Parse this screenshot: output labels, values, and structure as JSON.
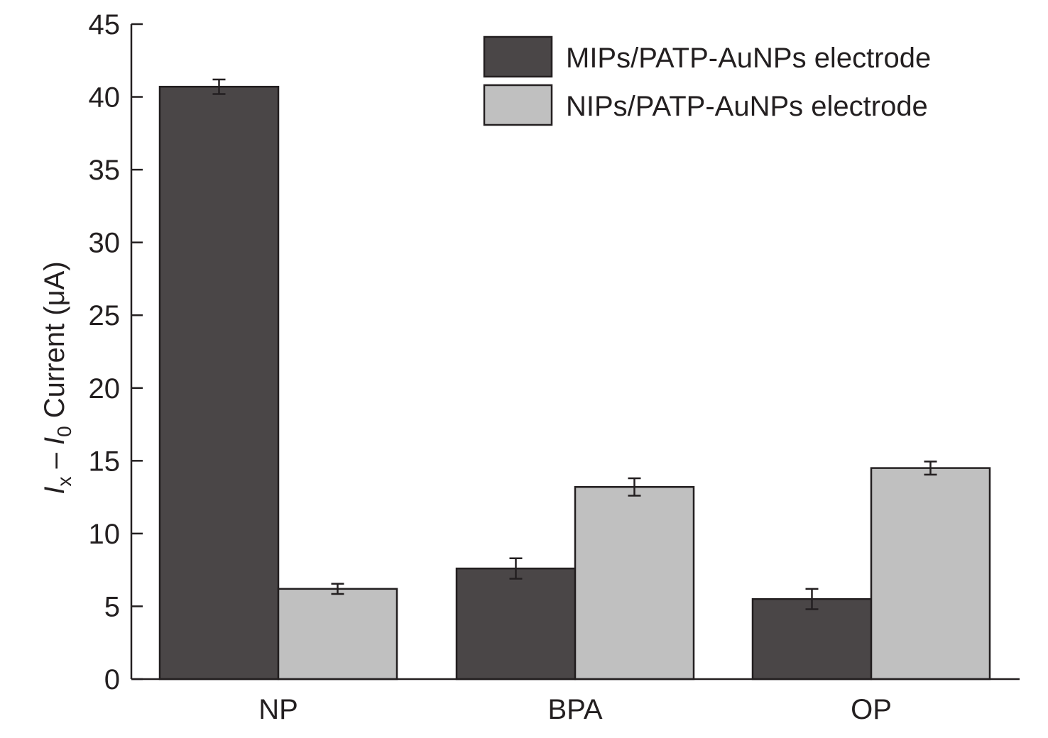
{
  "chart_data": {
    "type": "bar",
    "categories": [
      "NP",
      "BPA",
      "OP"
    ],
    "series": [
      {
        "name": "MIPs/PATP-AuNPs electrode",
        "color": "#4a4647",
        "values": [
          40.7,
          7.6,
          5.5
        ],
        "errors": [
          0.5,
          0.7,
          0.7
        ]
      },
      {
        "name": "NIPs/PATP-AuNPs electrode",
        "color": "#c0c0c0",
        "values": [
          6.2,
          13.2,
          14.5
        ],
        "errors": [
          0.35,
          0.6,
          0.45
        ]
      }
    ],
    "ylabel": {
      "italic_1": "I",
      "sub_1": "x",
      "middle": " – ",
      "italic_2": "I",
      "sub_2": "0",
      "rest": " Current (μA)"
    },
    "ylim": [
      0,
      45
    ],
    "yticks": [
      "0",
      "5",
      "10",
      "15",
      "20",
      "25",
      "30",
      "35",
      "40",
      "45"
    ],
    "ytick_values": [
      0,
      5,
      10,
      15,
      20,
      25,
      30,
      35,
      40,
      45
    ],
    "grid": false,
    "legend_position": "top-right"
  }
}
